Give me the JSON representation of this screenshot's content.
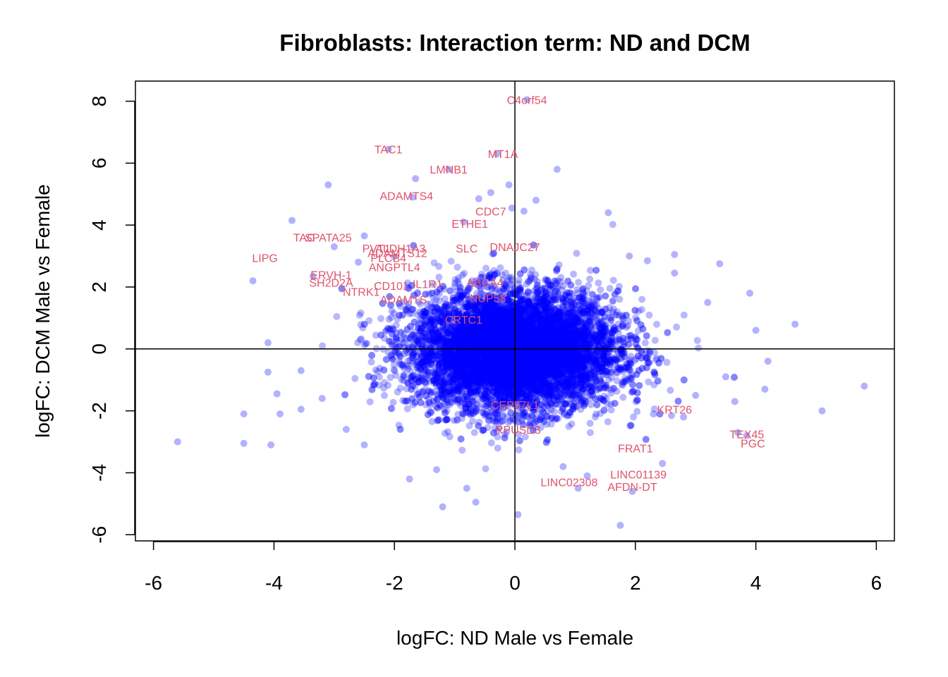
{
  "chart_data": {
    "type": "scatter",
    "title": "Fibroblasts: Interaction term: ND and DCM",
    "xlabel": "logFC: ND Male vs Female",
    "ylabel": "logFC: DCM Male vs Female",
    "xlim": [
      -6.3,
      6.3
    ],
    "ylim": [
      -6.2,
      8.65
    ],
    "xticks": [
      "-6",
      "-4",
      "-2",
      "0",
      "2",
      "4",
      "6"
    ],
    "yticks": [
      "-6",
      "-4",
      "-2",
      "0",
      "2",
      "4",
      "6",
      "8"
    ],
    "reference_lines": {
      "x": 0,
      "y": 0
    },
    "point_color": "#0000ff",
    "label_color": "#df536b",
    "bulk_cloud": {
      "n": 9000,
      "x_mean": 0.0,
      "x_sd": 0.85,
      "y_mean": -0.05,
      "y_sd": 0.95
    },
    "outlier_points": [
      {
        "x": 0.2,
        "y": 8.05
      },
      {
        "x": -2.1,
        "y": 6.45
      },
      {
        "x": -0.3,
        "y": 6.3
      },
      {
        "x": -1.1,
        "y": 5.8
      },
      {
        "x": 0.7,
        "y": 5.8
      },
      {
        "x": -1.65,
        "y": 5.5
      },
      {
        "x": -3.1,
        "y": 5.3
      },
      {
        "x": -0.1,
        "y": 5.3
      },
      {
        "x": -0.4,
        "y": 5.05
      },
      {
        "x": -1.7,
        "y": 4.9
      },
      {
        "x": -0.6,
        "y": 4.85
      },
      {
        "x": 0.35,
        "y": 4.8
      },
      {
        "x": 1.55,
        "y": 4.4
      },
      {
        "x": -3.7,
        "y": 4.15
      },
      {
        "x": -4.35,
        "y": 2.2
      },
      {
        "x": -4.1,
        "y": 0.2
      },
      {
        "x": -3.55,
        "y": -0.7
      },
      {
        "x": -4.1,
        "y": -0.75
      },
      {
        "x": -3.95,
        "y": -1.45
      },
      {
        "x": -3.9,
        "y": -2.1
      },
      {
        "x": -4.5,
        "y": -2.1
      },
      {
        "x": -3.55,
        "y": -1.95
      },
      {
        "x": -5.6,
        "y": -3.0
      },
      {
        "x": -4.5,
        "y": -3.05
      },
      {
        "x": -4.05,
        "y": -3.1
      },
      {
        "x": -1.75,
        "y": -4.2
      },
      {
        "x": -0.8,
        "y": -4.5
      },
      {
        "x": -1.2,
        "y": -5.1
      },
      {
        "x": -0.65,
        "y": -4.95
      },
      {
        "x": 0.05,
        "y": -5.35
      },
      {
        "x": 1.75,
        "y": -5.7
      },
      {
        "x": 1.95,
        "y": -4.6
      },
      {
        "x": 1.05,
        "y": -4.5
      },
      {
        "x": 2.45,
        "y": -3.7
      },
      {
        "x": 3.9,
        "y": 1.8
      },
      {
        "x": 4.65,
        "y": 0.8
      },
      {
        "x": 4.0,
        "y": 0.6
      },
      {
        "x": 4.2,
        "y": -0.4
      },
      {
        "x": 5.8,
        "y": -1.2
      },
      {
        "x": 5.1,
        "y": -2.0
      },
      {
        "x": 3.7,
        "y": -2.7
      },
      {
        "x": 3.85,
        "y": -2.8
      },
      {
        "x": 3.4,
        "y": 2.75
      },
      {
        "x": 2.65,
        "y": 2.45
      },
      {
        "x": 2.65,
        "y": 3.05
      },
      {
        "x": 2.6,
        "y": -2.15
      },
      {
        "x": 2.3,
        "y": -2.1
      },
      {
        "x": 3.65,
        "y": -1.7
      },
      {
        "x": 4.15,
        "y": -1.3
      },
      {
        "x": -0.05,
        "y": 4.55
      },
      {
        "x": 0.15,
        "y": 4.45
      },
      {
        "x": -0.85,
        "y": 4.1
      },
      {
        "x": -2.5,
        "y": 3.65
      },
      {
        "x": -3.0,
        "y": 3.3
      },
      {
        "x": -2.6,
        "y": 2.8
      },
      {
        "x": -3.35,
        "y": 2.35
      },
      {
        "x": 2.2,
        "y": 2.85
      },
      {
        "x": 1.9,
        "y": 3.0
      },
      {
        "x": 3.2,
        "y": 1.5
      },
      {
        "x": 3.5,
        "y": -0.9
      },
      {
        "x": 3.0,
        "y": -1.5
      },
      {
        "x": -2.5,
        "y": -3.1
      },
      {
        "x": -1.3,
        "y": -3.9
      },
      {
        "x": 0.8,
        "y": -3.8
      },
      {
        "x": 1.2,
        "y": -4.1
      },
      {
        "x": 2.8,
        "y": -2.2
      },
      {
        "x": -3.2,
        "y": -1.6
      },
      {
        "x": -2.8,
        "y": -2.6
      }
    ],
    "labels": [
      {
        "gene": "C4orf54",
        "x": 0.2,
        "y": 8.05
      },
      {
        "gene": "TAC1",
        "x": -2.1,
        "y": 6.45
      },
      {
        "gene": "MT1A",
        "x": -0.2,
        "y": 6.3
      },
      {
        "gene": "LMNB1",
        "x": -1.1,
        "y": 5.8
      },
      {
        "gene": "ADAMTS4",
        "x": -1.8,
        "y": 4.95
      },
      {
        "gene": "CDC7",
        "x": -0.4,
        "y": 4.45
      },
      {
        "gene": "ETHE1",
        "x": -0.75,
        "y": 4.05
      },
      {
        "gene": "SPATA25",
        "x": -3.1,
        "y": 3.6
      },
      {
        "gene": "TAC",
        "x": -3.5,
        "y": 3.6
      },
      {
        "gene": "LIPG",
        "x": -4.15,
        "y": 2.95
      },
      {
        "gene": "PVT1",
        "x": -2.3,
        "y": 3.25
      },
      {
        "gene": "ALDH1A3",
        "x": -1.9,
        "y": 3.25
      },
      {
        "gene": "ADAMTS12",
        "x": -1.95,
        "y": 3.1
      },
      {
        "gene": "SLC",
        "x": -0.8,
        "y": 3.25
      },
      {
        "gene": "DNAJC27",
        "x": 0.0,
        "y": 3.3
      },
      {
        "gene": "PLCB4",
        "x": -2.1,
        "y": 2.95
      },
      {
        "gene": "ANGPTL4",
        "x": -2.0,
        "y": 2.65
      },
      {
        "gene": "ERVH-1",
        "x": -3.05,
        "y": 2.4
      },
      {
        "gene": "SH2D2A",
        "x": -3.05,
        "y": 2.15
      },
      {
        "gene": "CD101",
        "x": -2.05,
        "y": 2.05
      },
      {
        "gene": "IL1R1",
        "x": -1.45,
        "y": 2.1
      },
      {
        "gene": "NTRK1",
        "x": -2.55,
        "y": 1.85
      },
      {
        "gene": "ADAMTS",
        "x": -1.85,
        "y": 1.6
      },
      {
        "gene": "CRTC1",
        "x": -0.85,
        "y": 0.95
      },
      {
        "gene": "ABCA4",
        "x": -0.5,
        "y": 2.15
      },
      {
        "gene": "NUP58",
        "x": -0.45,
        "y": 1.65
      },
      {
        "gene": "CEP57L1",
        "x": 0.0,
        "y": -1.8
      },
      {
        "gene": "RPUSD3",
        "x": 0.05,
        "y": -2.6
      },
      {
        "gene": "KRT26",
        "x": 2.65,
        "y": -1.95
      },
      {
        "gene": "TEX45",
        "x": 3.85,
        "y": -2.75
      },
      {
        "gene": "PGC",
        "x": 3.95,
        "y": -3.05
      },
      {
        "gene": "FRAT1",
        "x": 2.0,
        "y": -3.2
      },
      {
        "gene": "LINC01139",
        "x": 2.05,
        "y": -4.05
      },
      {
        "gene": "LINC02308",
        "x": 0.9,
        "y": -4.3
      },
      {
        "gene": "AFDN-DT",
        "x": 1.95,
        "y": -4.45
      }
    ]
  }
}
